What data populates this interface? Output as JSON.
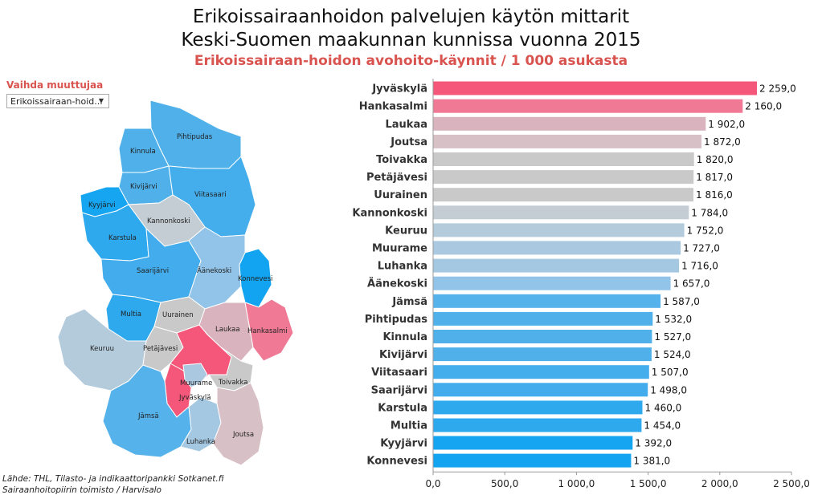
{
  "title_line1": "Erikoissairaanhoidon palvelujen käytön mittarit",
  "title_line2": "Keski-Suomen maakunnan kunnissa vuonna 2015",
  "subtitle": "Erikoissairaan-hoidon avohoito-käynnit / 1 000 asukasta",
  "selector": {
    "label": "Vaihda muuttujaa",
    "value": "Erikoissairaan-hoid...",
    "arrow_icon": "triangle-down-icon"
  },
  "source_line1": "Lähde: THL, Tilasto- ja indikaattoripankki Sotkanet.fi",
  "source_line2": "Sairaanhoitopiirin toimisto / Harvisalo",
  "colors": {
    "title_red": "#d9534f",
    "bar_high": "#f4577a",
    "bar_grey": "#c8c8c8",
    "bar_blue": "#1fa9ef"
  },
  "chart_data": {
    "type": "bar",
    "orientation": "horizontal",
    "categories": [
      "Jyväskylä",
      "Hankasalmi",
      "Laukaa",
      "Joutsa",
      "Toivakka",
      "Petäjävesi",
      "Uurainen",
      "Kannonkoski",
      "Keuruu",
      "Muurame",
      "Luhanka",
      "Äänekoski",
      "Jämsä",
      "Pihtipudas",
      "Kinnula",
      "Kivijärvi",
      "Viitasaari",
      "Saarijärvi",
      "Karstula",
      "Multia",
      "Kyyjärvi",
      "Konnevesi"
    ],
    "values": [
      2259.0,
      2160.0,
      1902.0,
      1872.0,
      1820.0,
      1817.0,
      1816.0,
      1784.0,
      1752.0,
      1727.0,
      1716.0,
      1657.0,
      1587.0,
      1532.0,
      1527.0,
      1524.0,
      1507.0,
      1498.0,
      1460.0,
      1454.0,
      1392.0,
      1381.0
    ],
    "value_labels": [
      "2 259,0",
      "2 160,0",
      "1 902,0",
      "1 872,0",
      "1 820,0",
      "1 817,0",
      "1 816,0",
      "1 784,0",
      "1 752,0",
      "1 727,0",
      "1 716,0",
      "1 657,0",
      "1 587,0",
      "1 532,0",
      "1 527,0",
      "1 524,0",
      "1 507,0",
      "1 498,0",
      "1 460,0",
      "1 454,0",
      "1 392,0",
      "1 381,0"
    ],
    "bar_colors": [
      "#f4577a",
      "#f07a95",
      "#d9b3bd",
      "#d7c0c6",
      "#c9c9c9",
      "#c9c9c9",
      "#c9c9c9",
      "#c4cdd4",
      "#b4cbdc",
      "#aac9e0",
      "#a5c8e2",
      "#91c4e8",
      "#56b2ea",
      "#4fb0ea",
      "#4fb0ea",
      "#4fb0ea",
      "#44adeb",
      "#42acec",
      "#2fa9ee",
      "#2ea9ee",
      "#16a5f1",
      "#12a4f1"
    ],
    "xlim": [
      0,
      2500
    ],
    "xticks": [
      0,
      500,
      1000,
      1500,
      2000,
      2500
    ],
    "xtick_labels": [
      "0,0",
      "500,0",
      "1 000,0",
      "1 500,0",
      "2 000,0",
      "2 500,0"
    ],
    "xlabel": "",
    "ylabel": "",
    "grid": false
  },
  "map_labels": [
    "Pihtipudas",
    "Kinnula",
    "Kivijärvi",
    "Viitasaari",
    "Kyyjärvi",
    "Kannonkoski",
    "Karstula",
    "Saarijärvi",
    "Äänekoski",
    "Konnevesi",
    "Multia",
    "Uurainen",
    "Laukaa",
    "Hankasalmi",
    "Keuruu",
    "Petäjävesi",
    "Muurame",
    "Toivakka",
    "Jyväskylä",
    "Jämsä",
    "Luhanka",
    "Joutsa"
  ]
}
